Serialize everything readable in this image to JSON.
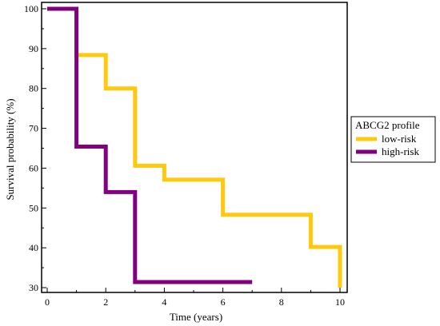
{
  "chart_data": {
    "type": "line",
    "step": true,
    "xlabel": "Time  (years)",
    "ylabel": "Survival probability (%)",
    "xlim": [
      0,
      10
    ],
    "ylim": [
      30,
      100
    ],
    "x_ticks": [
      0,
      2,
      4,
      6,
      8,
      10
    ],
    "y_ticks": [
      30,
      40,
      50,
      60,
      70,
      80,
      90,
      100
    ],
    "grid": false,
    "legend": {
      "title": "ABCG2 profile",
      "placement": "right"
    },
    "series": [
      {
        "name": "low-risk",
        "color": "#FFC90E",
        "x": [
          0,
          1,
          2,
          3,
          4,
          6,
          9,
          10
        ],
        "y": [
          100,
          88.4,
          80,
          60.6,
          57.1,
          48.3,
          40.2,
          30
        ]
      },
      {
        "name": "high-risk",
        "color": "#800080",
        "x": [
          0,
          1,
          2,
          3,
          7
        ],
        "y": [
          100,
          65.4,
          54,
          31.4,
          31.4
        ]
      }
    ]
  }
}
